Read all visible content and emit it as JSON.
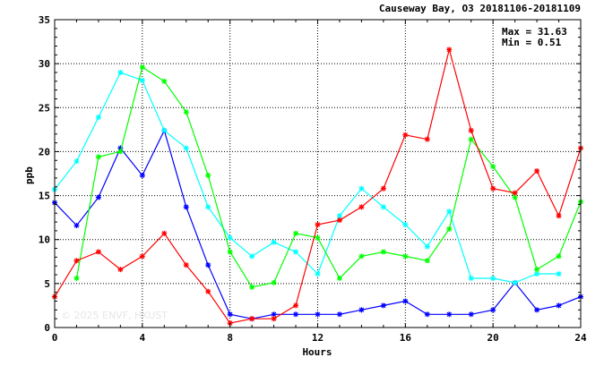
{
  "chart_data": {
    "type": "line",
    "title": "Causeway Bay, O3 20181106-20181109",
    "xlabel": "Hours",
    "ylabel": "ppb",
    "xlim": [
      0,
      24
    ],
    "ylim": [
      0,
      35
    ],
    "x_ticks": [
      "0",
      "4",
      "8",
      "12",
      "16",
      "20",
      "24"
    ],
    "y_ticks": [
      "0",
      "5",
      "10",
      "15",
      "20",
      "25",
      "30",
      "35"
    ],
    "grid": true,
    "stats": {
      "max_label": "Max = 31.63",
      "min_label": "Min =  0.51"
    },
    "watermark": "© 2025 ENVF, HKUST",
    "series": [
      {
        "color": "#0000ff",
        "marker": "asterisk",
        "x": [
          0,
          1,
          2,
          3,
          4,
          5,
          6,
          7,
          8,
          9,
          10,
          11,
          12,
          13,
          14,
          15,
          16,
          17,
          18,
          19,
          20,
          21,
          22,
          23,
          24
        ],
        "y": [
          14.2,
          11.6,
          14.8,
          20.4,
          17.3,
          22.4,
          13.7,
          7.1,
          1.5,
          1.0,
          1.5,
          1.5,
          1.5,
          1.5,
          2.0,
          2.5,
          3.0,
          1.5,
          1.5,
          1.5,
          2.0,
          5.1,
          2.0,
          2.5,
          3.5
        ]
      },
      {
        "color": "#00ffff",
        "marker": "asterisk",
        "x": [
          0,
          1,
          2,
          3,
          4,
          5,
          6,
          7,
          8,
          9,
          10,
          11,
          12,
          13,
          14,
          15,
          16,
          17,
          18,
          19,
          20,
          21,
          22,
          23
        ],
        "y": [
          15.7,
          18.9,
          23.9,
          29.0,
          28.1,
          22.4,
          20.4,
          13.7,
          10.2,
          8.1,
          9.7,
          8.6,
          6.1,
          12.7,
          15.8,
          13.7,
          11.7,
          9.2,
          13.2,
          5.6,
          5.6,
          5.1,
          6.1,
          6.1
        ]
      },
      {
        "color": "#00ff00",
        "marker": "asterisk",
        "x": [
          1,
          2,
          3,
          4,
          5,
          6,
          7,
          8,
          9,
          10,
          11,
          12,
          13,
          14,
          15,
          16,
          17,
          18,
          19,
          20,
          21,
          22,
          23,
          24
        ],
        "y": [
          5.6,
          19.4,
          20.0,
          29.6,
          28.0,
          24.5,
          17.3,
          8.6,
          4.6,
          5.1,
          10.7,
          10.2,
          5.6,
          8.1,
          8.6,
          8.1,
          7.6,
          11.2,
          21.4,
          18.3,
          14.8,
          6.6,
          8.1,
          14.3
        ]
      },
      {
        "color": "#ff0000",
        "marker": "asterisk",
        "x": [
          0,
          1,
          2,
          3,
          4,
          5,
          6,
          7,
          8,
          9,
          10,
          11,
          12,
          13,
          14,
          15,
          16,
          17,
          18,
          19,
          20,
          21,
          22,
          23,
          24
        ],
        "y": [
          3.5,
          7.6,
          8.6,
          6.6,
          8.1,
          10.7,
          7.1,
          4.1,
          0.5,
          1.0,
          1.0,
          2.5,
          11.7,
          12.2,
          13.7,
          15.8,
          21.9,
          21.4,
          31.6,
          22.4,
          15.8,
          15.3,
          17.8,
          12.7,
          20.4
        ]
      }
    ]
  }
}
